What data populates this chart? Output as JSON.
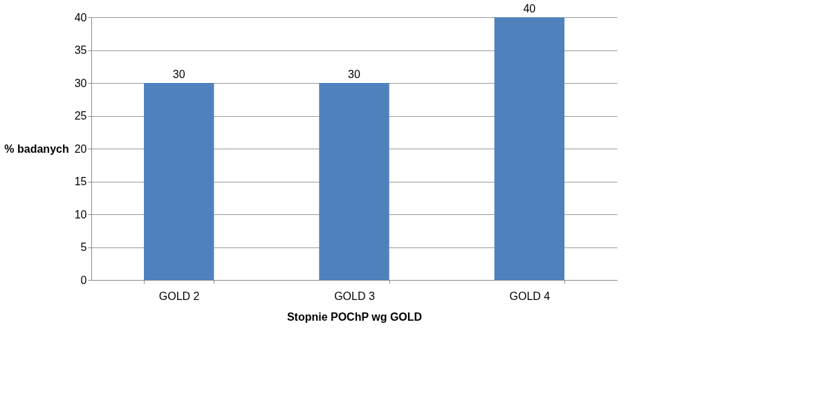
{
  "chart_data": {
    "type": "bar",
    "categories": [
      "GOLD 2",
      "GOLD 3",
      "GOLD 4"
    ],
    "values": [
      30,
      30,
      40
    ],
    "color": "#4f81bd",
    "xlabel": "Stopnie POChP wg GOLD",
    "ylabel": "% badanych",
    "ylim": [
      0,
      40
    ],
    "yticks": [
      0,
      5,
      10,
      15,
      20,
      25,
      30,
      35,
      40
    ],
    "grid": "y",
    "data_labels": true
  }
}
